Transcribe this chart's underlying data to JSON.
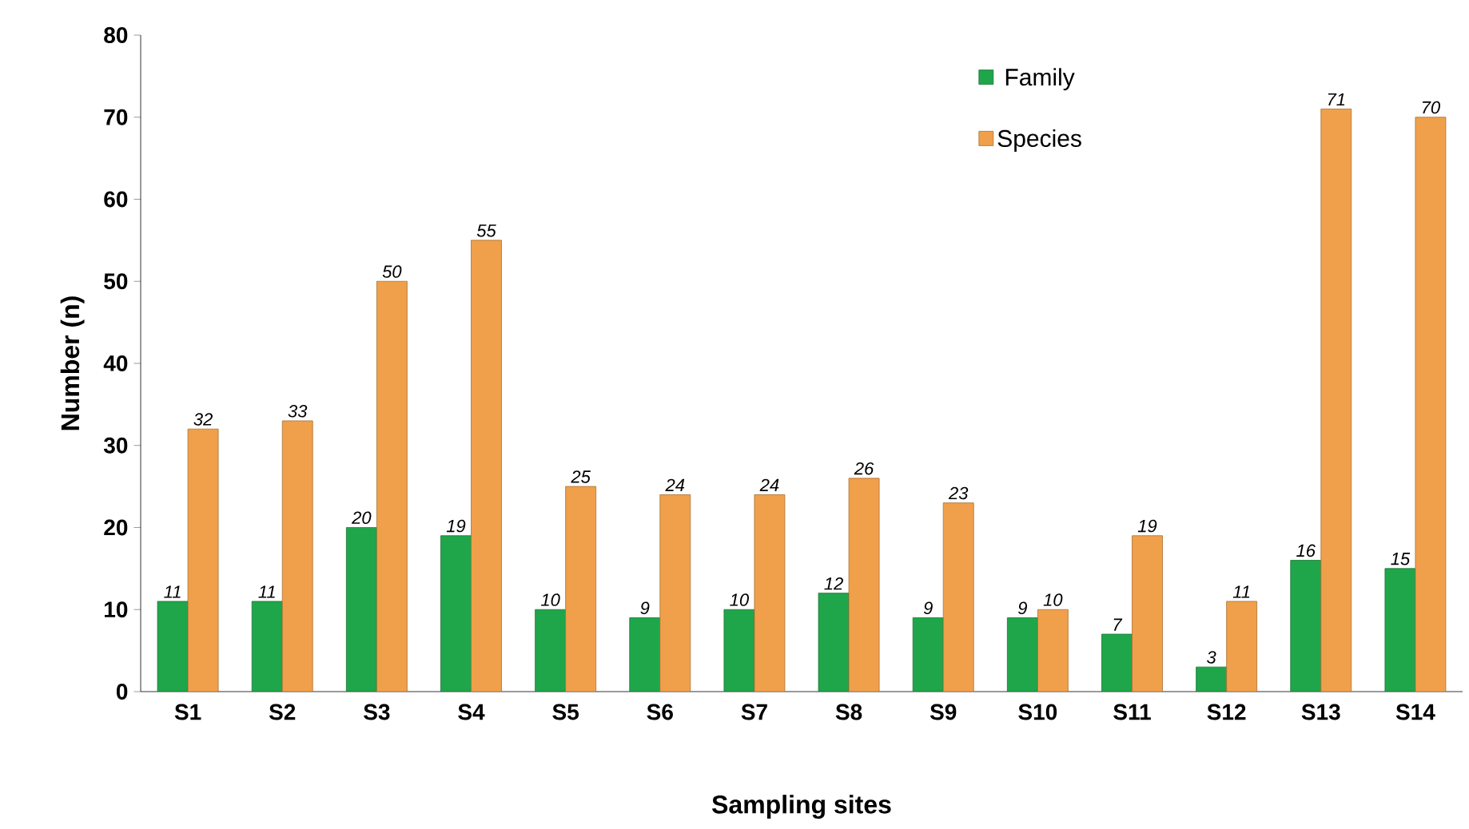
{
  "chart_data": {
    "type": "bar",
    "xlabel": "Sampling sites",
    "ylabel": "Number (n)",
    "categories": [
      "S1",
      "S2",
      "S3",
      "S4",
      "S5",
      "S6",
      "S7",
      "S8",
      "S9",
      "S10",
      "S11",
      "S12",
      "S13",
      "S14"
    ],
    "series": [
      {
        "name": "Family",
        "color": "#1fa64a",
        "values": [
          11,
          11,
          20,
          19,
          10,
          9,
          10,
          12,
          9,
          9,
          7,
          3,
          16,
          15
        ]
      },
      {
        "name": "Species",
        "color": "#f0a04b",
        "values": [
          32,
          33,
          50,
          55,
          25,
          24,
          24,
          26,
          23,
          10,
          19,
          11,
          71,
          70
        ]
      }
    ],
    "ylim": [
      0,
      80
    ],
    "yticks": [
      0,
      10,
      20,
      30,
      40,
      50,
      60,
      70,
      80
    ],
    "data_labels": true,
    "legend": "top right",
    "grid": false
  }
}
